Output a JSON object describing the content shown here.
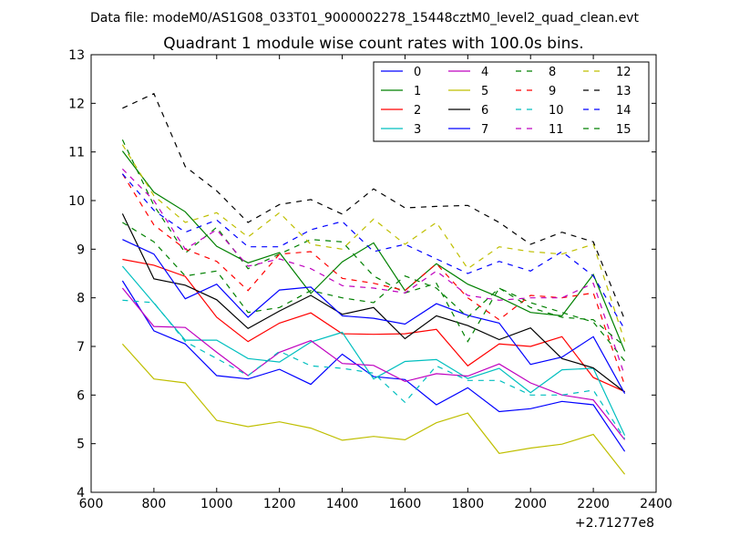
{
  "chart_data": {
    "type": "line",
    "suptitle": "Data file: modeM0/AS1G08_033T01_9000002278_15448cztM0_level2_quad_clean.evt",
    "title": "Quadrant 1 module wise count rates with 100.0s bins.",
    "xlabel": "",
    "ylabel": "",
    "x_offset_label": "+2.71277e8",
    "xlim": [
      600,
      2400
    ],
    "ylim": [
      4,
      13
    ],
    "xticks": [
      600,
      800,
      1000,
      1200,
      1400,
      1600,
      1800,
      2000,
      2200,
      2400
    ],
    "yticks": [
      4,
      5,
      6,
      7,
      8,
      9,
      10,
      11,
      12,
      13
    ],
    "grid": false,
    "legend_position": "top-right",
    "x": [
      700,
      800,
      900,
      1000,
      1100,
      1200,
      1300,
      1400,
      1500,
      1600,
      1700,
      1800,
      1900,
      2000,
      2100,
      2200,
      2300
    ],
    "series": [
      {
        "name": "0",
        "color": "#0000ff",
        "dash": "solid",
        "values": [
          8.35,
          7.32,
          7.05,
          6.4,
          6.33,
          6.53,
          6.22,
          6.84,
          6.38,
          6.32,
          5.8,
          6.15,
          5.66,
          5.72,
          5.87,
          5.8,
          4.84
        ]
      },
      {
        "name": "1",
        "color": "#008000",
        "dash": "solid",
        "values": [
          11.02,
          10.17,
          9.77,
          9.06,
          8.72,
          8.93,
          8.09,
          8.74,
          9.13,
          8.15,
          8.7,
          8.28,
          8.01,
          7.7,
          7.63,
          8.48,
          6.9
        ]
      },
      {
        "name": "2",
        "color": "#ff0000",
        "dash": "solid",
        "values": [
          8.79,
          8.67,
          8.44,
          7.6,
          7.1,
          7.48,
          7.69,
          7.26,
          7.25,
          7.26,
          7.35,
          6.6,
          7.05,
          7.0,
          7.2,
          6.36,
          6.07
        ]
      },
      {
        "name": "3",
        "color": "#00bfbf",
        "dash": "solid",
        "values": [
          8.65,
          7.89,
          7.13,
          7.13,
          6.75,
          6.68,
          7.09,
          7.29,
          6.33,
          6.69,
          6.73,
          6.34,
          6.55,
          6.05,
          6.52,
          6.55,
          5.17
        ]
      },
      {
        "name": "4",
        "color": "#bf00bf",
        "dash": "solid",
        "values": [
          8.2,
          7.41,
          7.39,
          6.88,
          6.4,
          6.88,
          7.12,
          6.65,
          6.61,
          6.28,
          6.44,
          6.39,
          6.64,
          6.25,
          6.0,
          5.9,
          5.08
        ]
      },
      {
        "name": "5",
        "color": "#bfbf00",
        "dash": "solid",
        "values": [
          7.05,
          6.33,
          6.25,
          5.48,
          5.35,
          5.45,
          5.32,
          5.07,
          5.15,
          5.08,
          5.43,
          5.63,
          4.8,
          4.91,
          4.99,
          5.19,
          4.37
        ]
      },
      {
        "name": "6",
        "color": "#000000",
        "dash": "solid",
        "values": [
          9.73,
          8.39,
          8.26,
          7.96,
          7.37,
          7.73,
          8.05,
          7.66,
          7.8,
          7.16,
          7.63,
          7.43,
          7.14,
          7.38,
          6.75,
          6.56,
          6.06
        ]
      },
      {
        "name": "7",
        "color": "#0000ff",
        "dash": "solid",
        "values": [
          9.2,
          8.9,
          7.98,
          8.28,
          7.6,
          8.16,
          8.22,
          7.63,
          7.58,
          7.46,
          7.88,
          7.64,
          7.48,
          6.63,
          6.78,
          7.2,
          6.03
        ]
      },
      {
        "name": "8",
        "color": "#008000",
        "dash": "dashed",
        "values": [
          11.25,
          9.9,
          8.92,
          9.45,
          8.6,
          8.9,
          9.2,
          9.15,
          8.45,
          8.1,
          8.3,
          7.1,
          8.2,
          7.9,
          7.7,
          7.5,
          6.7
        ]
      },
      {
        "name": "9",
        "color": "#ff0000",
        "dash": "dashed",
        "values": [
          10.55,
          9.5,
          9.0,
          8.75,
          8.15,
          8.9,
          8.95,
          8.4,
          8.3,
          8.15,
          8.7,
          8.0,
          7.55,
          8.05,
          8.0,
          8.1,
          6.2
        ]
      },
      {
        "name": "10",
        "color": "#00bfbf",
        "dash": "dashed",
        "values": [
          7.95,
          7.9,
          7.1,
          6.75,
          6.4,
          6.9,
          6.6,
          6.55,
          6.45,
          5.85,
          6.6,
          6.3,
          6.3,
          6.0,
          6.0,
          6.1,
          5.1
        ]
      },
      {
        "name": "11",
        "color": "#bf00bf",
        "dash": "dashed",
        "values": [
          10.65,
          10.0,
          9.0,
          9.4,
          8.65,
          8.8,
          8.6,
          8.25,
          8.2,
          8.1,
          8.55,
          8.05,
          7.95,
          8.0,
          8.0,
          8.3,
          6.4
        ]
      },
      {
        "name": "12",
        "color": "#bfbf00",
        "dash": "dashed",
        "values": [
          11.15,
          10.1,
          9.55,
          9.75,
          9.25,
          9.75,
          9.1,
          9.0,
          9.62,
          9.1,
          9.55,
          8.6,
          9.05,
          8.95,
          8.9,
          9.1,
          7.1
        ]
      },
      {
        "name": "13",
        "color": "#000000",
        "dash": "dashed",
        "values": [
          11.9,
          12.2,
          10.7,
          10.2,
          9.55,
          9.92,
          10.02,
          9.72,
          10.24,
          9.85,
          9.88,
          9.9,
          9.55,
          9.1,
          9.35,
          9.15,
          7.55
        ]
      },
      {
        "name": "14",
        "color": "#0000ff",
        "dash": "dashed",
        "values": [
          10.55,
          9.8,
          9.35,
          9.6,
          9.05,
          9.05,
          9.4,
          9.57,
          8.95,
          9.1,
          8.8,
          8.5,
          8.75,
          8.55,
          8.95,
          8.45,
          7.35
        ]
      },
      {
        "name": "15",
        "color": "#008000",
        "dash": "dashed",
        "values": [
          9.55,
          9.15,
          8.45,
          8.55,
          7.7,
          7.8,
          8.15,
          8.0,
          7.9,
          8.45,
          8.2,
          7.6,
          8.2,
          7.8,
          7.6,
          7.55,
          7.0
        ]
      }
    ]
  }
}
